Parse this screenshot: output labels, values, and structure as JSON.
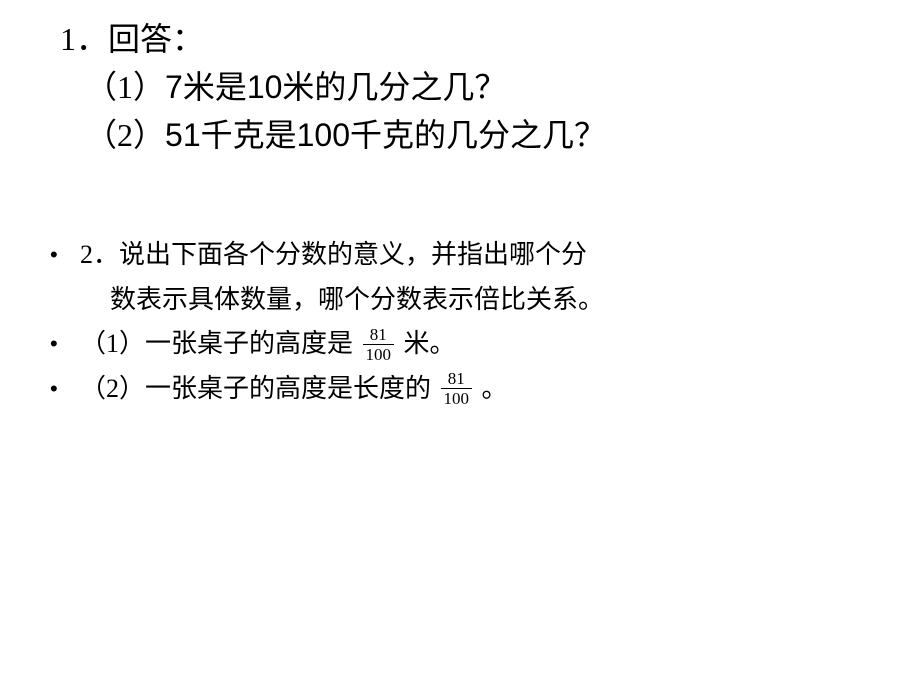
{
  "q1": {
    "title": "1．回答：",
    "sub1_prefix": "（1）",
    "sub1_text": "米是",
    "sub1_n1": "7",
    "sub1_n2": "10",
    "sub1_suffix": "米的几分之几？",
    "sub2_prefix": "（2）",
    "sub2_n1": "51",
    "sub2_text": "千克是",
    "sub2_n2": "100",
    "sub2_suffix": "千克的几分之几？"
  },
  "q2": {
    "title_line1": "2．说出下面各个分数的意义，并指出哪个分",
    "title_line2": "数表示具体数量，哪个分数表示倍比关系。",
    "sub1_prefix": "（1）一张桌子的高度是 ",
    "sub1_suffix": " 米。",
    "sub2_prefix": " （2）一张桌子的高度是长度的 ",
    "sub2_suffix": "。",
    "frac_num": "81",
    "frac_den": "100"
  },
  "bullet": "•"
}
